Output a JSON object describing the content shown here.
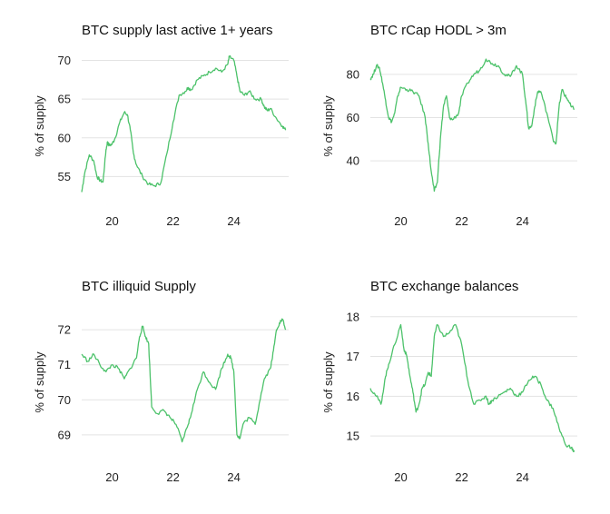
{
  "colors": {
    "line": "#4cc26a",
    "grid": "#e3e3e3",
    "text": "#222222"
  },
  "chart_data": [
    {
      "type": "line",
      "title": "BTC supply last active 1+ years",
      "ylabel": "% of supply",
      "xlabel": "",
      "xlim": [
        2019.0,
        2025.8
      ],
      "ylim": [
        52,
        71
      ],
      "yticks": [
        55,
        60,
        65,
        70
      ],
      "xticks": [
        2020,
        2022,
        2024
      ],
      "xticklabels": [
        "20",
        "22",
        "24"
      ],
      "grid": true,
      "x": [
        2019.0,
        2019.1,
        2019.25,
        2019.4,
        2019.5,
        2019.6,
        2019.7,
        2019.8,
        2019.85,
        2019.9,
        2020.0,
        2020.1,
        2020.25,
        2020.4,
        2020.5,
        2020.6,
        2020.7,
        2020.8,
        2021.0,
        2021.2,
        2021.4,
        2021.6,
        2021.8,
        2022.0,
        2022.2,
        2022.4,
        2022.5,
        2022.6,
        2022.8,
        2023.0,
        2023.2,
        2023.4,
        2023.6,
        2023.8,
        2023.85,
        2024.0,
        2024.1,
        2024.2,
        2024.35,
        2024.5,
        2024.7,
        2024.9,
        2025.0,
        2025.1,
        2025.2,
        2025.4,
        2025.6,
        2025.7
      ],
      "values": [
        53.0,
        55.5,
        57.8,
        57.0,
        55.0,
        54.5,
        54.3,
        58.5,
        59.5,
        59.0,
        59.2,
        60.0,
        62.0,
        63.3,
        63.0,
        61.0,
        58.0,
        56.5,
        55.0,
        54.0,
        53.8,
        54.2,
        58.0,
        62.0,
        65.5,
        66.0,
        66.5,
        66.2,
        67.5,
        68.0,
        68.5,
        69.0,
        68.5,
        69.5,
        70.5,
        70.0,
        68.0,
        66.0,
        65.5,
        66.0,
        65.0,
        65.0,
        64.0,
        63.5,
        63.8,
        62.5,
        61.5,
        61.0
      ]
    },
    {
      "type": "line",
      "title": "BTC rCap HODL > 3m",
      "ylabel": "% of supply",
      "xlabel": "",
      "xlim": [
        2019.0,
        2025.8
      ],
      "ylim": [
        22,
        90
      ],
      "yticks": [
        40,
        60,
        80
      ],
      "xticks": [
        2020,
        2022,
        2024
      ],
      "xticklabels": [
        "20",
        "22",
        "24"
      ],
      "grid": true,
      "x": [
        2019.0,
        2019.1,
        2019.2,
        2019.3,
        2019.4,
        2019.5,
        2019.6,
        2019.7,
        2019.8,
        2019.9,
        2020.0,
        2020.2,
        2020.4,
        2020.6,
        2020.8,
        2020.9,
        2021.0,
        2021.1,
        2021.2,
        2021.3,
        2021.4,
        2021.5,
        2021.6,
        2021.7,
        2021.9,
        2022.0,
        2022.2,
        2022.4,
        2022.6,
        2022.8,
        2023.0,
        2023.2,
        2023.4,
        2023.6,
        2023.8,
        2024.0,
        2024.1,
        2024.2,
        2024.3,
        2024.4,
        2024.5,
        2024.6,
        2024.8,
        2025.0,
        2025.1,
        2025.2,
        2025.3,
        2025.4,
        2025.5,
        2025.6,
        2025.7
      ],
      "values": [
        78,
        80,
        84,
        83,
        76,
        68,
        60,
        58,
        62,
        70,
        74,
        73,
        72,
        70,
        60,
        48,
        35,
        26,
        30,
        50,
        65,
        70,
        60,
        59,
        62,
        70,
        76,
        80,
        82,
        87,
        85,
        84,
        80,
        79,
        84,
        80,
        68,
        55,
        56,
        65,
        72,
        72,
        62,
        50,
        48,
        65,
        73,
        70,
        68,
        65,
        64
      ]
    },
    {
      "type": "line",
      "title": "BTC illiquid Supply",
      "ylabel": "% of supply",
      "xlabel": "",
      "xlim": [
        2019.0,
        2025.8
      ],
      "ylim": [
        68.4,
        72.6
      ],
      "yticks": [
        69,
        70,
        71,
        72
      ],
      "xticks": [
        2020,
        2022,
        2024
      ],
      "xticklabels": [
        "20",
        "22",
        "24"
      ],
      "grid": true,
      "x": [
        2019.0,
        2019.2,
        2019.4,
        2019.6,
        2019.8,
        2020.0,
        2020.2,
        2020.4,
        2020.6,
        2020.8,
        2020.9,
        2021.0,
        2021.1,
        2021.2,
        2021.3,
        2021.5,
        2021.7,
        2021.9,
        2022.1,
        2022.3,
        2022.5,
        2022.6,
        2022.8,
        2023.0,
        2023.2,
        2023.4,
        2023.6,
        2023.8,
        2023.9,
        2024.0,
        2024.1,
        2024.2,
        2024.3,
        2024.5,
        2024.7,
        2024.9,
        2025.0,
        2025.2,
        2025.3,
        2025.4,
        2025.5,
        2025.6,
        2025.7
      ],
      "values": [
        71.3,
        71.1,
        71.3,
        71.0,
        70.8,
        71.0,
        70.9,
        70.6,
        70.9,
        71.2,
        71.8,
        72.1,
        71.8,
        71.6,
        69.8,
        69.6,
        69.7,
        69.5,
        69.3,
        68.8,
        69.3,
        69.6,
        70.3,
        70.8,
        70.5,
        70.3,
        70.9,
        71.3,
        71.2,
        70.8,
        69.0,
        68.9,
        69.3,
        69.5,
        69.3,
        70.2,
        70.6,
        70.9,
        71.4,
        72.0,
        72.2,
        72.3,
        72.0
      ]
    },
    {
      "type": "line",
      "title": "BTC exchange balances",
      "ylabel": "% of supply",
      "xlabel": "",
      "xlim": [
        2019.0,
        2025.8
      ],
      "ylim": [
        14.5,
        18.2
      ],
      "yticks": [
        15,
        16,
        17,
        18
      ],
      "xticks": [
        2020,
        2022,
        2024
      ],
      "xticklabels": [
        "20",
        "22",
        "24"
      ],
      "grid": true,
      "x": [
        2019.0,
        2019.2,
        2019.35,
        2019.5,
        2019.6,
        2019.8,
        2020.0,
        2020.1,
        2020.2,
        2020.3,
        2020.4,
        2020.5,
        2020.6,
        2020.7,
        2020.8,
        2020.9,
        2021.0,
        2021.1,
        2021.2,
        2021.4,
        2021.6,
        2021.8,
        2022.0,
        2022.2,
        2022.4,
        2022.6,
        2022.8,
        2022.9,
        2023.0,
        2023.2,
        2023.4,
        2023.6,
        2023.8,
        2024.0,
        2024.2,
        2024.4,
        2024.6,
        2024.8,
        2025.0,
        2025.2,
        2025.4,
        2025.6,
        2025.7
      ],
      "values": [
        16.2,
        16.0,
        15.8,
        16.5,
        16.8,
        17.3,
        17.8,
        17.2,
        17.0,
        16.5,
        16.1,
        15.6,
        15.8,
        16.2,
        16.3,
        16.6,
        16.5,
        17.5,
        17.8,
        17.5,
        17.6,
        17.8,
        17.3,
        16.4,
        15.8,
        15.9,
        16.0,
        15.8,
        15.9,
        16.0,
        16.1,
        16.2,
        16.0,
        16.1,
        16.4,
        16.5,
        16.3,
        15.9,
        15.7,
        15.2,
        14.8,
        14.7,
        14.6
      ]
    }
  ]
}
